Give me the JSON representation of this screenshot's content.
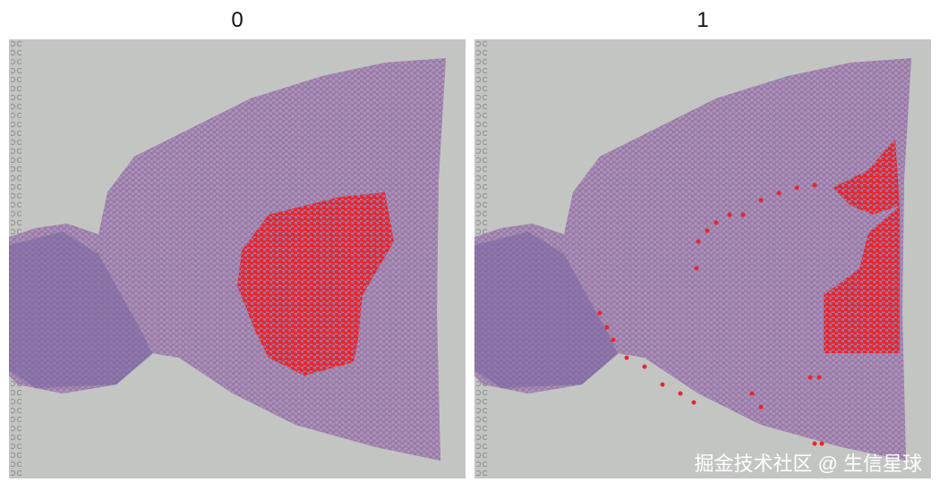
{
  "panels": [
    {
      "title": "0"
    },
    {
      "title": "1"
    }
  ],
  "watermark": "掘金技术社区 @ 生信星球"
}
